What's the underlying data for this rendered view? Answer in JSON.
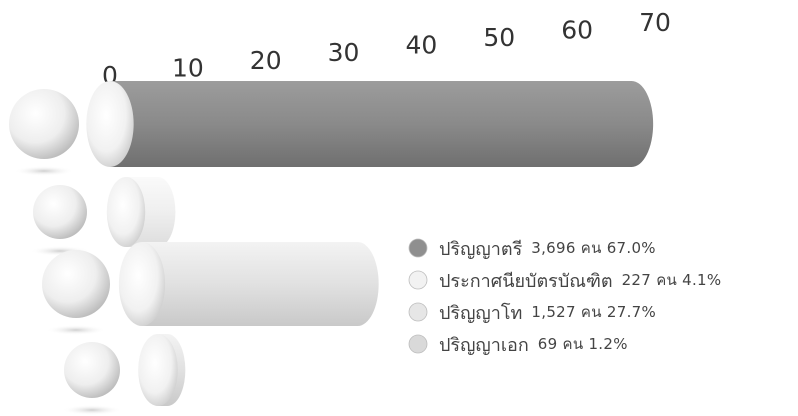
{
  "colors": {
    "cylinder_dark": "#8f8f8f",
    "cylinder_light": "#e6e6e6",
    "sphere_face": "#f7f7f7",
    "sphere_shade": "#b5b5b5",
    "text": "#444444"
  },
  "chart_data": {
    "type": "bar",
    "orientation": "horizontal",
    "title": "",
    "xlabel": "",
    "ylabel": "",
    "xlim": [
      0,
      70
    ],
    "x_ticks": [
      "0",
      "10",
      "20",
      "30",
      "40",
      "50",
      "60",
      "70"
    ],
    "grid": false,
    "legend_position": "bottom-right",
    "categories": [
      "ปริญญาตรี",
      "ประกาศนียบัตรบัณฑิต",
      "ปริญญาโท",
      "ปริญญาเอก"
    ],
    "values": [
      67.0,
      4.1,
      27.7,
      1.2
    ],
    "legend": [
      {
        "name": "ปริญญาตรี",
        "figures": "3,696 คน 67.0%",
        "color": "#8f8f8f"
      },
      {
        "name": "ประกาศนียบัตรบัณฑิต",
        "figures": "227 คน 4.1%",
        "color": "#f2f2f2"
      },
      {
        "name": "ปริญญาโท",
        "figures": "1,527 คน 27.7%",
        "color": "#e6e6e6"
      },
      {
        "name": "ปริญญาเอก",
        "figures": "69 คน 1.2%",
        "color": "#d9d9d9"
      }
    ]
  }
}
